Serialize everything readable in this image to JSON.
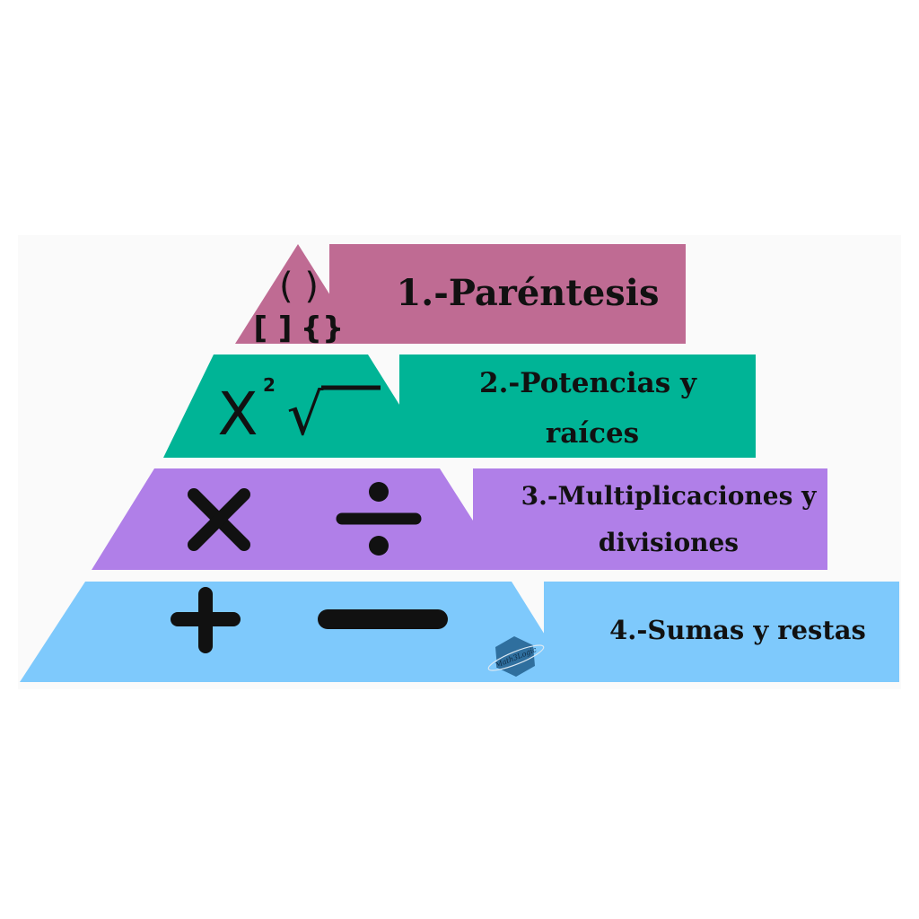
{
  "levels": [
    {
      "label_lines": [
        "1.-Paréntesis"
      ],
      "symbols": {
        "parens": "( )",
        "brackets": "[ ]",
        "braces": "{}"
      },
      "color": "#bf6b93"
    },
    {
      "label_lines": [
        "2.-Potencias y",
        "raíces"
      ],
      "symbols": {
        "base": "X",
        "exponent": "2",
        "root": "√"
      },
      "color": "#00b496"
    },
    {
      "label_lines": [
        "3.-Multiplicaciones y",
        "divisiones"
      ],
      "symbols": {
        "multiply": "×",
        "divide": "÷"
      },
      "color": "#b07fe8"
    },
    {
      "label_lines": [
        "4.-Sumas y restas"
      ],
      "symbols": {
        "plus": "+",
        "minus": "−"
      },
      "color": "#7ec9fc"
    }
  ],
  "background": "#fafafa",
  "logo": {
    "text": "Math3Logic",
    "color": "#2f6f9e"
  }
}
